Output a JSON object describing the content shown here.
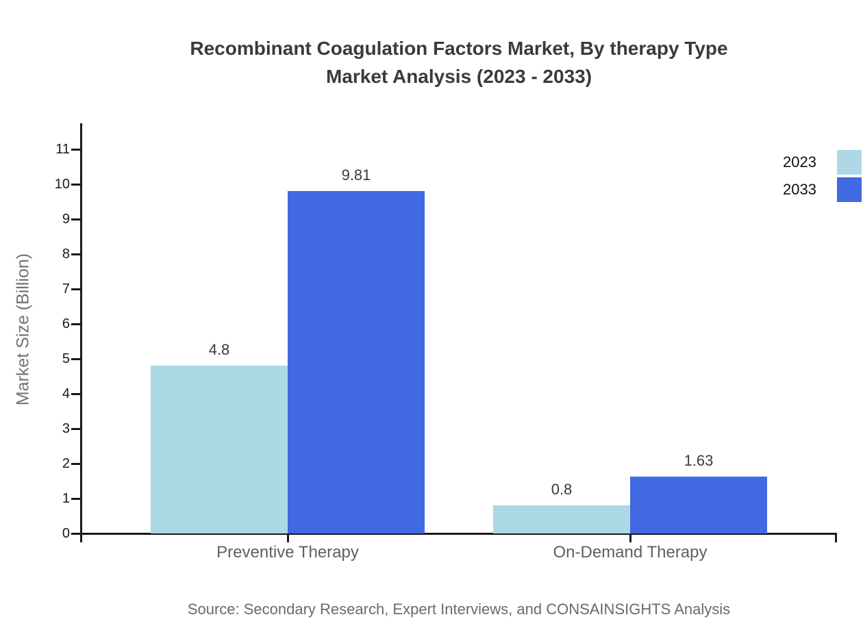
{
  "title": {
    "line1": "Recombinant Coagulation Factors Market, By therapy Type",
    "line2": "Market Analysis (2023 - 2033)"
  },
  "source_note": "Source: Secondary Research, Expert Interviews, and CONSAINSIGHTS Analysis",
  "colors": {
    "series_2023": "#ADD8E6",
    "series_2033": "#4169E1",
    "axis": "#1a1a1a",
    "title_text": "#3a3a3a",
    "category_text": "#5f5f5f",
    "value_text": "#3a3a3a",
    "source_text": "#6a6a6a",
    "ylabel_text": "#737373",
    "background": "#ffffff"
  },
  "chart_data": {
    "type": "bar",
    "title": "Recombinant Coagulation Factors Market, By therapy Type Market Analysis (2023 - 2033)",
    "categories": [
      "Preventive Therapy",
      "On-Demand Therapy"
    ],
    "series": [
      {
        "name": "2023",
        "color": "#ADD8E6",
        "values": [
          4.8,
          0.8
        ]
      },
      {
        "name": "2033",
        "color": "#4169E1",
        "values": [
          9.81,
          1.63
        ]
      }
    ],
    "value_labels": [
      [
        "4.8",
        "0.8"
      ],
      [
        "9.81",
        "1.63"
      ]
    ],
    "xlabel": "",
    "ylabel": "Market Size (Billion)",
    "ylim": [
      0,
      11.8
    ],
    "yticks": [
      0,
      1,
      2,
      3,
      4,
      5,
      6,
      7,
      8,
      9,
      10,
      11
    ],
    "grid": false,
    "legend_position": "top-right"
  }
}
